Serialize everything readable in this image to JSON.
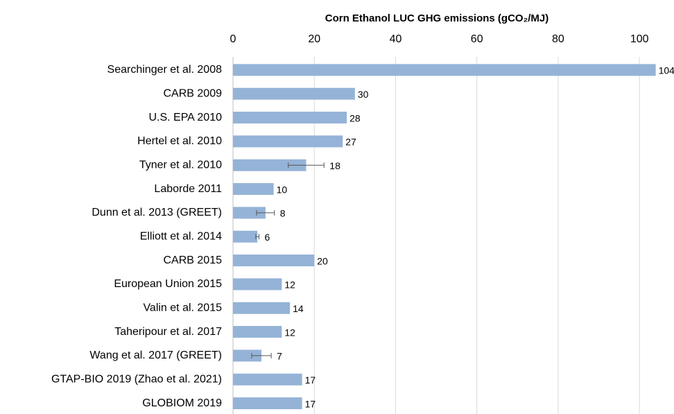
{
  "chart_data": {
    "type": "hbar",
    "title": "Corn Ethanol LUC GHG emissions (gCO₂/MJ)",
    "categories": [
      "Searchinger et al. 2008",
      "CARB 2009",
      "U.S. EPA 2010",
      "Hertel et al. 2010",
      "Tyner et al. 2010",
      "Laborde 2011",
      "Dunn et al. 2013 (GREET)",
      "Elliott et al. 2014",
      "CARB 2015",
      "European Union 2015",
      "Valin et al. 2015",
      "Taheripour et al. 2017",
      "Wang et al. 2017 (GREET)",
      "GTAP-BIO 2019 (Zhao et al. 2021)",
      "GLOBIOM 2019"
    ],
    "values": [
      104,
      30,
      28,
      27,
      18,
      10,
      8,
      6,
      20,
      12,
      14,
      12,
      7,
      17,
      17
    ],
    "errors": [
      null,
      null,
      null,
      null,
      4.4,
      null,
      2.2,
      0.4,
      null,
      null,
      null,
      null,
      2.4,
      null,
      null
    ],
    "color": "#95b3d7",
    "xlim": [
      0,
      108.5
    ],
    "xticks": [
      0,
      20,
      40,
      60,
      80,
      100
    ],
    "grid": true
  }
}
